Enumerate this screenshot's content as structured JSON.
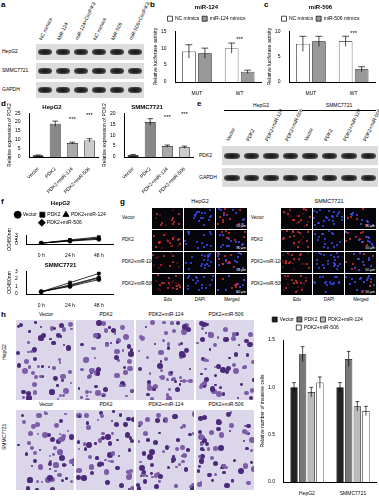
{
  "figure_labels": [
    "a",
    "b",
    "c",
    "d",
    "e",
    "f",
    "g",
    "h"
  ],
  "panel_a": {
    "columns": [
      "NC mimics",
      "MiR-124",
      "miR-124+CircPIK3",
      "NC mimics",
      "MiR-506",
      "miR-506+CircPIK3"
    ],
    "rows": [
      "HepG2",
      "SMMC7721",
      "GAPDH"
    ]
  },
  "panel_e": {
    "groups": [
      "HepG2",
      "SMMC7721"
    ],
    "columns": [
      "Vector",
      "PDK2",
      "PDK2+miR-124",
      "PDK2+miR-506"
    ],
    "rows": [
      "PDK2",
      "GAPDH"
    ]
  },
  "panel_g": {
    "groups": [
      "HepG2",
      "SMMC7721"
    ],
    "rows": [
      "Vector",
      "PDK2",
      "PDK2+miR-124",
      "PDK2+miR-506"
    ],
    "columns": [
      "Edu",
      "DAPI",
      "Merged"
    ],
    "scale_bar": "50 μm"
  },
  "panel_h_images": {
    "groups": [
      "HepG2",
      "SMMC7721"
    ],
    "columns": [
      "Vector",
      "PDK2",
      "PDK2+miR-124",
      "PDK2+miR-506"
    ]
  },
  "chart_data": [
    {
      "type": "bar",
      "title": "miR-124",
      "y_label": "Relative luciferase activity",
      "categories": [
        "MUT",
        "WT"
      ],
      "series": [
        {
          "name": "NC mimics",
          "color": "#ffffff",
          "values": [
            9,
            10
          ],
          "errors": [
            2,
            1.5
          ]
        },
        {
          "name": "miR-124 mimics",
          "color": "#999999",
          "values": [
            8.5,
            3
          ],
          "errors": [
            1.5,
            0.5
          ]
        }
      ],
      "ylim": [
        0,
        15
      ],
      "yticks": [
        0,
        5,
        10,
        15
      ],
      "legend": "top",
      "annotations": [
        {
          "text": "***",
          "x": "WT",
          "y": 12.5
        }
      ]
    },
    {
      "type": "bar",
      "title": "miR-506",
      "y_label": "Relative luciferase activity",
      "categories": [
        "MUT",
        "WT"
      ],
      "series": [
        {
          "name": "NC mimics",
          "color": "#ffffff",
          "values": [
            7.5,
            8
          ],
          "errors": [
            1.5,
            1
          ]
        },
        {
          "name": "miR-506 mimics",
          "color": "#999999",
          "values": [
            8,
            2.5
          ],
          "errors": [
            1,
            0.5
          ]
        }
      ],
      "ylim": [
        0,
        10
      ],
      "yticks": [
        0,
        5,
        10
      ],
      "legend": "top",
      "annotations": [
        {
          "text": "***",
          "x": "WT",
          "y": 9.5
        }
      ]
    },
    {
      "type": "bar",
      "title": "HepG2",
      "y_label": "Relative expression of PDK2",
      "categories": [
        "Vector",
        "PDK2",
        "PDK2+miR-124",
        "PDK2+miR-506"
      ],
      "values": [
        1,
        19,
        8,
        9.5
      ],
      "errors": [
        0.2,
        1.5,
        0.5,
        1
      ],
      "colors": [
        "#222222",
        "#888888",
        "#aaaaaa",
        "#cccccc"
      ],
      "ylim": [
        0,
        25
      ],
      "yticks": [
        0,
        5,
        10,
        15,
        20,
        25
      ],
      "annotations": [
        {
          "text": "***",
          "x": "PDK2+miR-124",
          "y": 21.5
        },
        {
          "text": "***",
          "x": "PDK2+miR-506",
          "y": 23.5
        }
      ]
    },
    {
      "type": "bar",
      "title": "SMMC7721",
      "y_label": "Relative expression of PDK2",
      "categories": [
        "Vector",
        "PDK2",
        "PDK2+miR-124",
        "PDK2+miR-506"
      ],
      "values": [
        1,
        16,
        5,
        4.5
      ],
      "errors": [
        0.2,
        1.5,
        0.5,
        0.5
      ],
      "colors": [
        "#222222",
        "#888888",
        "#aaaaaa",
        "#cccccc"
      ],
      "ylim": [
        0,
        20
      ],
      "yticks": [
        0,
        5,
        10,
        15,
        20
      ],
      "annotations": [
        {
          "text": "***",
          "x": "PDK2+miR-124",
          "y": 18
        },
        {
          "text": "***",
          "x": "PDK2+miR-506",
          "y": 19.5
        }
      ]
    },
    {
      "type": "line",
      "title": "HepG2",
      "y_label": "OD450nm",
      "categories": [
        "0 h",
        "24 h",
        "48 h"
      ],
      "series": [
        {
          "name": "Vector",
          "color": "#000000",
          "marker": "circle",
          "values": [
            0.3,
            1.0,
            1.6
          ]
        },
        {
          "name": "PDK2",
          "color": "#000000",
          "marker": "square",
          "values": [
            0.3,
            1.4,
            2.4
          ]
        },
        {
          "name": "PDK2+miR-124",
          "color": "#000000",
          "marker": "triangle",
          "values": [
            0.3,
            1.1,
            1.9
          ]
        },
        {
          "name": "PDK2+miR-506",
          "color": "#000000",
          "marker": "diamond",
          "values": [
            0.3,
            1.2,
            2.0
          ]
        }
      ],
      "ylim": [
        0,
        3
      ],
      "yticks": [
        0,
        1,
        2,
        3
      ],
      "legend": "top"
    },
    {
      "type": "line",
      "title": "SMMC7721",
      "y_label": "OD450nm",
      "categories": [
        "0 h",
        "24 h",
        "48 h"
      ],
      "series": [
        {
          "name": "Vector",
          "color": "#000000",
          "marker": "circle",
          "values": [
            0.3,
            1.0,
            1.9
          ]
        },
        {
          "name": "PDK2",
          "color": "#000000",
          "marker": "square",
          "values": [
            0.3,
            1.5,
            2.7
          ]
        },
        {
          "name": "PDK2+miR-124",
          "color": "#000000",
          "marker": "triangle",
          "values": [
            0.3,
            1.1,
            2.1
          ]
        },
        {
          "name": "PDK2+miR-506",
          "color": "#000000",
          "marker": "diamond",
          "values": [
            0.3,
            1.2,
            2.2
          ]
        }
      ],
      "ylim": [
        0,
        3
      ],
      "yticks": [
        0,
        1,
        2,
        3
      ]
    },
    {
      "type": "bar",
      "y_label": "Relative number of invasive cells",
      "categories": [
        "HepG2",
        "SMMC7721"
      ],
      "series": [
        {
          "name": "Vector",
          "color": "#222222",
          "values": [
            1,
            1
          ],
          "errors": [
            0.05,
            0.05
          ]
        },
        {
          "name": "PDK2",
          "color": "#777777",
          "values": [
            1.35,
            1.3
          ],
          "errors": [
            0.08,
            0.08
          ]
        },
        {
          "name": "PDK2+miR-124",
          "color": "#bbbbbb",
          "values": [
            0.95,
            0.8
          ],
          "errors": [
            0.05,
            0.05
          ]
        },
        {
          "name": "PDK2+miR-506",
          "color": "#ffffff",
          "values": [
            1.05,
            0.75
          ],
          "errors": [
            0.06,
            0.05
          ]
        }
      ],
      "ylim": [
        0,
        1.5
      ],
      "yticks": [
        {
          "value": 0,
          "label": "0.0"
        },
        0.5,
        {
          "value": 1,
          "label": "1.0"
        },
        1.5
      ],
      "legend": "top"
    }
  ]
}
